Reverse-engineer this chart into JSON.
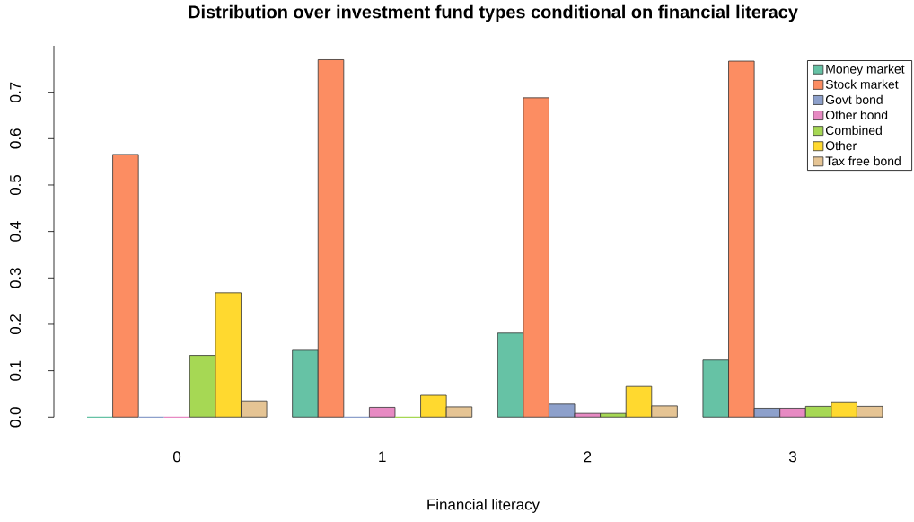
{
  "chart_data": {
    "type": "bar",
    "title": "Distribution over investment fund types conditional on financial literacy",
    "xlabel": "Financial literacy",
    "categories": [
      "0",
      "1",
      "2",
      "3"
    ],
    "series": [
      {
        "name": "Money market",
        "color": "#66c2a5",
        "values": [
          0,
          0.144,
          0.181,
          0.123
        ]
      },
      {
        "name": "Stock market",
        "color": "#fc8d62",
        "values": [
          0.566,
          0.77,
          0.688,
          0.767
        ]
      },
      {
        "name": "Govt bond",
        "color": "#8da0cb",
        "values": [
          0,
          0,
          0.028,
          0.019
        ]
      },
      {
        "name": "Other bond",
        "color": "#e78ac3",
        "values": [
          0,
          0.021,
          0.008,
          0.019
        ]
      },
      {
        "name": "Combined",
        "color": "#a6d854",
        "values": [
          0.133,
          0,
          0.008,
          0.023
        ]
      },
      {
        "name": "Other",
        "color": "#ffd92f",
        "values": [
          0.268,
          0.047,
          0.066,
          0.033
        ]
      },
      {
        "name": "Tax free bond",
        "color": "#e5c494",
        "values": [
          0.035,
          0.022,
          0.024,
          0.023
        ]
      }
    ],
    "ylim": [
      0,
      0.8
    ],
    "yticks": [
      {
        "value": 0,
        "label": "0.0"
      },
      0.1,
      0.2,
      0.3,
      0.4,
      0.5,
      0.6,
      0.7
    ],
    "legend": "top right"
  }
}
